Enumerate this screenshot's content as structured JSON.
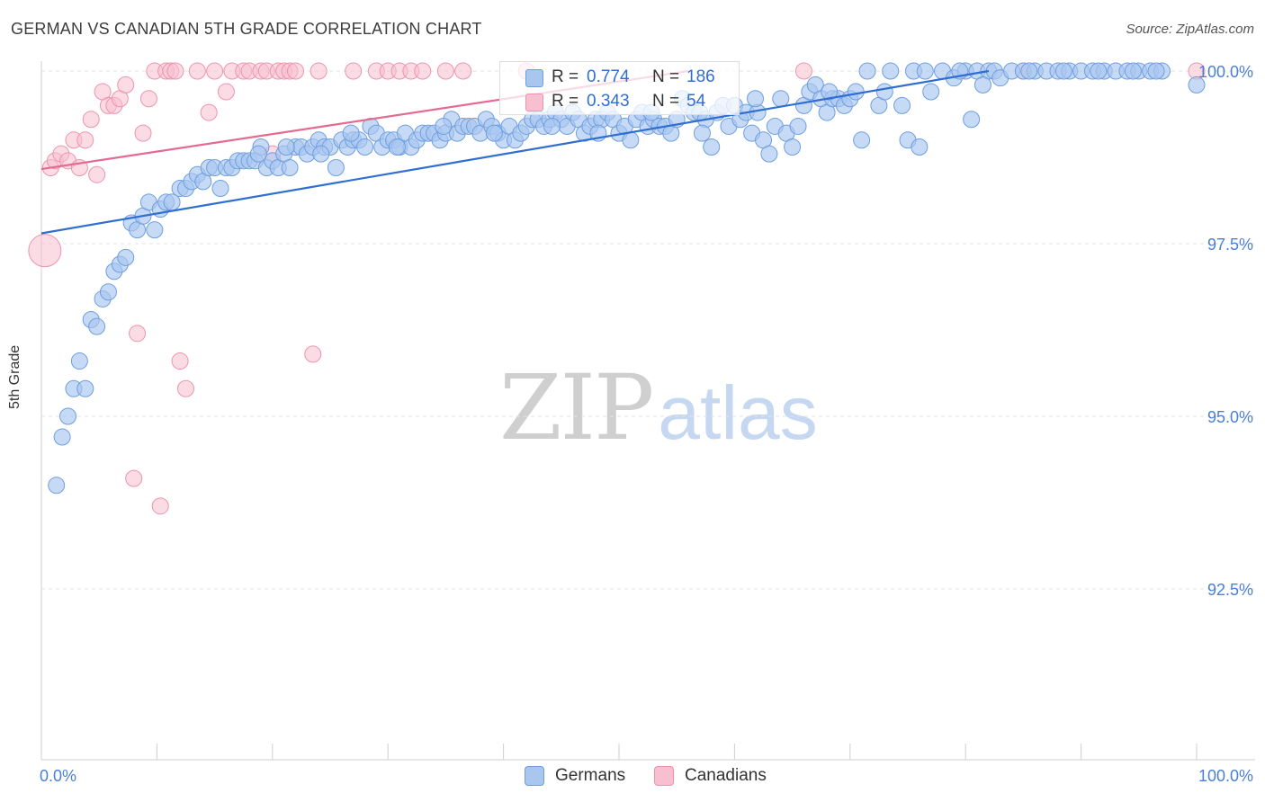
{
  "title": "GERMAN VS CANADIAN 5TH GRADE CORRELATION CHART",
  "source": "Source: ZipAtlas.com",
  "watermark": {
    "zip": "ZIP",
    "atlas": "atlas"
  },
  "legend": {
    "germans": {
      "r_label": "R =",
      "r_value": "0.774",
      "n_label": "N =",
      "n_value": "186"
    },
    "canadians": {
      "r_label": "R =",
      "r_value": "0.343",
      "n_label": "N =",
      "n_value": "54"
    }
  },
  "colors": {
    "germans": "#a9c6ef",
    "germans_stroke": "#6d9ee0",
    "germans_line": "#2f6fd1",
    "canadians": "#f7bfcf",
    "canadians_stroke": "#ee93ad",
    "canadians_line": "#e56a91",
    "grid": "#e3e3e3",
    "tick_text": "#4a7fd6"
  },
  "chart_data": {
    "type": "scatter",
    "title": "GERMAN VS CANADIAN 5TH GRADE CORRELATION CHART",
    "xlabel": "",
    "ylabel": "5th Grade",
    "xlim": [
      0,
      100
    ],
    "ylim": [
      90.4,
      100.5
    ],
    "x_tick_labels": [
      "0.0%",
      "100.0%"
    ],
    "y_ticks": [
      92.5,
      95.0,
      97.5,
      100.0
    ],
    "y_tick_labels": [
      "92.5%",
      "95.0%",
      "97.5%",
      "100.0%"
    ],
    "grid": true,
    "legend_position": "top-center",
    "series": [
      {
        "name": "Germans",
        "r": 0.774,
        "n": 186,
        "trend": [
          [
            0,
            97.65
          ],
          [
            82,
            100.0
          ]
        ],
        "points": [
          [
            1.3,
            94.0
          ],
          [
            1.8,
            94.7
          ],
          [
            2.3,
            95.0
          ],
          [
            2.8,
            95.4
          ],
          [
            3.3,
            95.8
          ],
          [
            3.8,
            95.4
          ],
          [
            4.3,
            96.4
          ],
          [
            4.8,
            96.3
          ],
          [
            5.3,
            96.7
          ],
          [
            5.8,
            96.8
          ],
          [
            6.3,
            97.1
          ],
          [
            6.8,
            97.2
          ],
          [
            7.3,
            97.3
          ],
          [
            7.8,
            97.8
          ],
          [
            8.3,
            97.7
          ],
          [
            8.8,
            97.9
          ],
          [
            9.3,
            98.1
          ],
          [
            9.8,
            97.7
          ],
          [
            10.3,
            98.0
          ],
          [
            10.8,
            98.1
          ],
          [
            11.3,
            98.1
          ],
          [
            12.0,
            98.3
          ],
          [
            12.5,
            98.3
          ],
          [
            13.0,
            98.4
          ],
          [
            13.5,
            98.5
          ],
          [
            14.0,
            98.4
          ],
          [
            14.5,
            98.6
          ],
          [
            15.0,
            98.6
          ],
          [
            15.5,
            98.3
          ],
          [
            16.0,
            98.6
          ],
          [
            16.5,
            98.6
          ],
          [
            17.0,
            98.7
          ],
          [
            17.5,
            98.7
          ],
          [
            18.0,
            98.7
          ],
          [
            18.5,
            98.7
          ],
          [
            19.0,
            98.9
          ],
          [
            19.5,
            98.6
          ],
          [
            20.0,
            98.7
          ],
          [
            20.5,
            98.6
          ],
          [
            21.0,
            98.8
          ],
          [
            21.5,
            98.6
          ],
          [
            22.0,
            98.9
          ],
          [
            22.5,
            98.9
          ],
          [
            23.0,
            98.8
          ],
          [
            23.5,
            98.9
          ],
          [
            24.0,
            99.0
          ],
          [
            24.5,
            98.9
          ],
          [
            25.0,
            98.9
          ],
          [
            25.5,
            98.6
          ],
          [
            26.0,
            99.0
          ],
          [
            26.5,
            98.9
          ],
          [
            27.0,
            99.0
          ],
          [
            27.5,
            99.0
          ],
          [
            28.0,
            98.9
          ],
          [
            28.5,
            99.2
          ],
          [
            29.0,
            99.1
          ],
          [
            29.5,
            98.9
          ],
          [
            30.0,
            99.0
          ],
          [
            30.5,
            99.0
          ],
          [
            31.0,
            98.9
          ],
          [
            31.5,
            99.1
          ],
          [
            32.0,
            98.9
          ],
          [
            32.5,
            99.0
          ],
          [
            33.0,
            99.1
          ],
          [
            33.5,
            99.1
          ],
          [
            34.0,
            99.1
          ],
          [
            34.5,
            99.0
          ],
          [
            35.0,
            99.1
          ],
          [
            35.5,
            99.3
          ],
          [
            36.0,
            99.1
          ],
          [
            36.5,
            99.2
          ],
          [
            37.0,
            99.2
          ],
          [
            37.5,
            99.2
          ],
          [
            38.0,
            99.1
          ],
          [
            38.5,
            99.3
          ],
          [
            39.0,
            99.2
          ],
          [
            39.5,
            99.1
          ],
          [
            40.0,
            99.0
          ],
          [
            40.5,
            99.2
          ],
          [
            41.0,
            99.0
          ],
          [
            41.5,
            99.1
          ],
          [
            42.0,
            99.2
          ],
          [
            42.5,
            99.3
          ],
          [
            43.0,
            99.3
          ],
          [
            43.5,
            99.2
          ],
          [
            44.0,
            99.3
          ],
          [
            44.5,
            99.4
          ],
          [
            45.0,
            99.3
          ],
          [
            45.5,
            99.2
          ],
          [
            46.0,
            99.4
          ],
          [
            46.5,
            99.3
          ],
          [
            47.0,
            99.1
          ],
          [
            47.5,
            99.2
          ],
          [
            48.0,
            99.3
          ],
          [
            48.5,
            99.3
          ],
          [
            49.0,
            99.4
          ],
          [
            49.5,
            99.3
          ],
          [
            50.0,
            99.1
          ],
          [
            50.5,
            99.2
          ],
          [
            51.0,
            99.0
          ],
          [
            51.5,
            99.3
          ],
          [
            52.0,
            99.4
          ],
          [
            52.5,
            99.2
          ],
          [
            53.0,
            99.3
          ],
          [
            53.5,
            99.2
          ],
          [
            54.0,
            99.2
          ],
          [
            54.5,
            99.1
          ],
          [
            55.0,
            99.3
          ],
          [
            55.5,
            99.6
          ],
          [
            56.0,
            99.5
          ],
          [
            56.5,
            99.4
          ],
          [
            57.0,
            99.4
          ],
          [
            57.5,
            99.3
          ],
          [
            58.0,
            98.9
          ],
          [
            58.5,
            99.4
          ],
          [
            59.0,
            99.5
          ],
          [
            59.5,
            99.2
          ],
          [
            60.0,
            99.5
          ],
          [
            60.5,
            99.3
          ],
          [
            61.0,
            99.4
          ],
          [
            61.5,
            99.1
          ],
          [
            62.0,
            99.4
          ],
          [
            62.5,
            99.0
          ],
          [
            63.0,
            98.8
          ],
          [
            63.5,
            99.2
          ],
          [
            64.0,
            99.6
          ],
          [
            64.5,
            99.1
          ],
          [
            65.0,
            98.9
          ],
          [
            65.5,
            99.2
          ],
          [
            66.0,
            99.5
          ],
          [
            66.5,
            99.7
          ],
          [
            67.0,
            99.8
          ],
          [
            67.5,
            99.6
          ],
          [
            68.0,
            99.4
          ],
          [
            68.5,
            99.6
          ],
          [
            69.0,
            99.6
          ],
          [
            69.5,
            99.5
          ],
          [
            70.0,
            99.6
          ],
          [
            70.5,
            99.7
          ],
          [
            71.0,
            99.0
          ],
          [
            71.5,
            100.0
          ],
          [
            72.5,
            99.5
          ],
          [
            73.0,
            99.7
          ],
          [
            73.5,
            100.0
          ],
          [
            74.5,
            99.5
          ],
          [
            75.0,
            99.0
          ],
          [
            75.5,
            100.0
          ],
          [
            76.0,
            98.9
          ],
          [
            76.5,
            100.0
          ],
          [
            77.0,
            99.7
          ],
          [
            78.0,
            100.0
          ],
          [
            79.0,
            99.9
          ],
          [
            80.0,
            100.0
          ],
          [
            80.5,
            99.3
          ],
          [
            81.0,
            100.0
          ],
          [
            82.0,
            100.0
          ],
          [
            82.5,
            100.0
          ],
          [
            83.0,
            99.9
          ],
          [
            84.0,
            100.0
          ],
          [
            85.0,
            100.0
          ],
          [
            86.0,
            100.0
          ],
          [
            87.0,
            100.0
          ],
          [
            88.0,
            100.0
          ],
          [
            89.0,
            100.0
          ],
          [
            90.0,
            100.0
          ],
          [
            91.0,
            100.0
          ],
          [
            92.0,
            100.0
          ],
          [
            93.0,
            100.0
          ],
          [
            94.0,
            100.0
          ],
          [
            95.0,
            100.0
          ],
          [
            96.0,
            100.0
          ],
          [
            97.0,
            100.0
          ],
          [
            100.0,
            99.8
          ],
          [
            81.5,
            99.8
          ],
          [
            79.5,
            100.0
          ],
          [
            85.5,
            100.0
          ],
          [
            88.5,
            100.0
          ],
          [
            91.5,
            100.0
          ],
          [
            94.5,
            100.0
          ],
          [
            96.5,
            100.0
          ],
          [
            68.2,
            99.7
          ],
          [
            61.8,
            99.6
          ],
          [
            57.2,
            99.1
          ],
          [
            52.8,
            99.4
          ],
          [
            48.2,
            99.1
          ],
          [
            44.2,
            99.2
          ],
          [
            39.2,
            99.1
          ],
          [
            34.8,
            99.2
          ],
          [
            30.8,
            98.9
          ],
          [
            26.8,
            99.1
          ],
          [
            24.2,
            98.8
          ],
          [
            21.2,
            98.9
          ],
          [
            18.8,
            98.8
          ]
        ]
      },
      {
        "name": "Canadians",
        "r": 0.343,
        "n": 54,
        "trend": [
          [
            0,
            98.58
          ],
          [
            56,
            100.0
          ]
        ],
        "points": [
          [
            0.3,
            97.4
          ],
          [
            0.8,
            98.6
          ],
          [
            1.2,
            98.7
          ],
          [
            1.7,
            98.8
          ],
          [
            2.3,
            98.7
          ],
          [
            2.8,
            99.0
          ],
          [
            3.3,
            98.6
          ],
          [
            3.8,
            99.0
          ],
          [
            4.3,
            99.3
          ],
          [
            4.8,
            98.5
          ],
          [
            5.3,
            99.7
          ],
          [
            5.8,
            99.5
          ],
          [
            6.3,
            99.5
          ],
          [
            6.8,
            99.6
          ],
          [
            7.3,
            99.8
          ],
          [
            8.3,
            96.2
          ],
          [
            8.8,
            99.1
          ],
          [
            9.3,
            99.6
          ],
          [
            9.8,
            100.0
          ],
          [
            10.3,
            93.7
          ],
          [
            10.8,
            100.0
          ],
          [
            11.2,
            100.0
          ],
          [
            11.6,
            100.0
          ],
          [
            12.0,
            95.8
          ],
          [
            12.5,
            95.4
          ],
          [
            13.5,
            100.0
          ],
          [
            14.5,
            99.4
          ],
          [
            15.0,
            100.0
          ],
          [
            16.0,
            99.7
          ],
          [
            16.5,
            100.0
          ],
          [
            17.5,
            100.0
          ],
          [
            18.0,
            100.0
          ],
          [
            19.0,
            100.0
          ],
          [
            19.5,
            100.0
          ],
          [
            20.0,
            98.8
          ],
          [
            20.5,
            100.0
          ],
          [
            21.0,
            100.0
          ],
          [
            21.5,
            100.0
          ],
          [
            22.0,
            100.0
          ],
          [
            23.5,
            95.9
          ],
          [
            24.0,
            100.0
          ],
          [
            27.0,
            100.0
          ],
          [
            29.0,
            100.0
          ],
          [
            30.0,
            100.0
          ],
          [
            31.0,
            100.0
          ],
          [
            32.0,
            100.0
          ],
          [
            33.0,
            100.0
          ],
          [
            35.0,
            100.0
          ],
          [
            36.5,
            100.0
          ],
          [
            42.0,
            100.0
          ],
          [
            8.0,
            94.1
          ],
          [
            66.0,
            100.0
          ],
          [
            85.0,
            100.0
          ],
          [
            100.0,
            100.0
          ]
        ]
      }
    ]
  },
  "bottom_legend": {
    "germans": "Germans",
    "canadians": "Canadians"
  }
}
